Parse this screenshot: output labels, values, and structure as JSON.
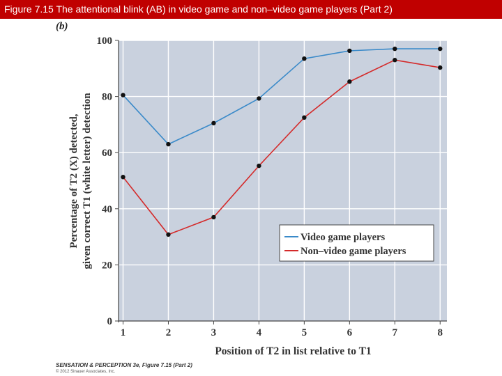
{
  "header": {
    "title": "Figure 7.15  The attentional blink (AB) in video game and non–video game players (Part 2)"
  },
  "panel_label": "(b)",
  "credits": {
    "line1": "SENSATION & PERCEPTION 3e, Figure 7.15 (Part 2)",
    "line2": "© 2012 Sinauer Associates, Inc."
  },
  "colors": {
    "title_bg": "#c00000",
    "plot_bg": "#c9d1de",
    "grid": "#ffffff",
    "video": "#3a8ac9",
    "nonvideo": "#d42a2a",
    "marker": "#111111"
  },
  "chart_data": {
    "type": "line",
    "title": "",
    "xlabel": "Position of T2 in list relative to T1",
    "ylabel_line1": "Percentage of T2 (X) detected,",
    "ylabel_line2": "given correct T1 (white letter) detection",
    "x": [
      1,
      2,
      3,
      4,
      5,
      6,
      7,
      8
    ],
    "xlim": [
      0.9,
      8.15
    ],
    "ylim": [
      0,
      100
    ],
    "yticks": [
      0,
      20,
      40,
      60,
      80,
      100
    ],
    "xticks": [
      1,
      2,
      3,
      4,
      5,
      6,
      7,
      8
    ],
    "grid": true,
    "legend_position": "lower-right",
    "series": [
      {
        "name": "Video game players",
        "values": [
          80.5,
          63,
          70.5,
          79.3,
          93.5,
          96.3,
          97,
          97
        ]
      },
      {
        "name": "Non–video game players",
        "values": [
          51.3,
          30.8,
          37,
          55.3,
          72.5,
          85.3,
          93,
          90.3
        ]
      }
    ]
  }
}
